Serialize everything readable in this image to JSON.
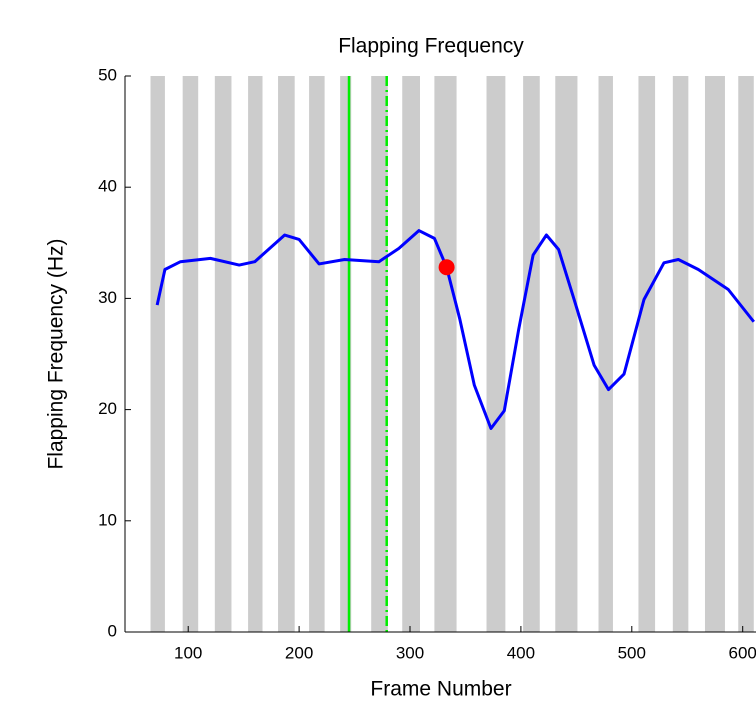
{
  "chart_data": {
    "type": "line",
    "title": "Flapping Frequency",
    "xlabel": "Frame Number",
    "ylabel": "Flapping Frequency (Hz)",
    "xlim": [
      43,
      612
    ],
    "ylim": [
      0,
      50
    ],
    "xticks": [
      100,
      200,
      300,
      400,
      500,
      600
    ],
    "yticks": [
      0,
      10,
      20,
      30,
      40,
      50
    ],
    "band_color": "#cccccc",
    "bands": [
      [
        66,
        79
      ],
      [
        95,
        109
      ],
      [
        124,
        139
      ],
      [
        154,
        167
      ],
      [
        181,
        196
      ],
      [
        209,
        223
      ],
      [
        237,
        247
      ],
      [
        265,
        280
      ],
      [
        293,
        309
      ],
      [
        322,
        342
      ],
      [
        369,
        386
      ],
      [
        402,
        417
      ],
      [
        431,
        451
      ],
      [
        470,
        483
      ],
      [
        506,
        521
      ],
      [
        537,
        551
      ],
      [
        566,
        584
      ],
      [
        596,
        610
      ]
    ],
    "vlines": [
      {
        "x": 245,
        "style": "solid",
        "color": "#00ee00"
      },
      {
        "x": 279,
        "style": "dashdot",
        "color": "#00ee00"
      }
    ],
    "x": [
      72,
      79,
      93,
      120,
      146,
      160,
      187,
      200,
      218,
      241,
      272,
      290,
      308,
      322,
      333,
      345,
      358,
      373,
      385,
      398,
      411,
      423,
      434,
      448,
      466,
      479,
      493,
      511,
      529,
      542,
      560,
      587,
      610
    ],
    "series": [
      {
        "color": "#0000ff",
        "values": [
          29.4,
          32.6,
          33.3,
          33.6,
          33.0,
          33.3,
          35.7,
          35.3,
          33.1,
          33.5,
          33.3,
          34.5,
          36.1,
          35.4,
          32.8,
          28.1,
          22.2,
          18.3,
          19.9,
          27.2,
          33.9,
          35.7,
          34.4,
          29.9,
          24.0,
          21.8,
          23.2,
          29.9,
          33.2,
          33.5,
          32.6,
          30.8,
          27.9
        ]
      }
    ],
    "marker": {
      "x": 333,
      "y": 32.8,
      "color": "#ff0000"
    }
  }
}
